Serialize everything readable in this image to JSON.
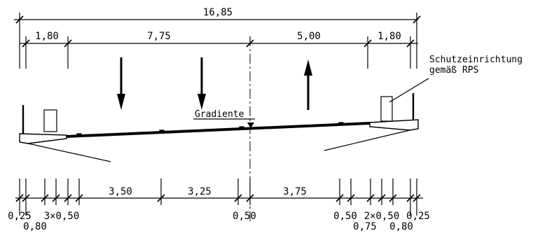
{
  "top_dimensions": {
    "overall": "16,85",
    "segments": [
      "1,80",
      "7,75",
      "5,00",
      "1,80"
    ]
  },
  "callouts": {
    "protection_line1": "Schutzeinrichtung",
    "protection_line2": "gemäß RPS",
    "gradient": "Gradiente"
  },
  "bottom_dimensions": {
    "lane_widths": [
      "3,50",
      "3,25",
      "3,75"
    ],
    "left_edge_row1": "0,25",
    "left_edge_row2": "0,80",
    "left_multi": "3×0,50",
    "center_strip": "0,50",
    "right_a": "0,50",
    "right_multi": "2×0,50",
    "right_edge": "0,25",
    "right_row2_a": "0,75",
    "right_row2_b": "0,80"
  },
  "traffic_directions": [
    "down",
    "down",
    "up"
  ]
}
